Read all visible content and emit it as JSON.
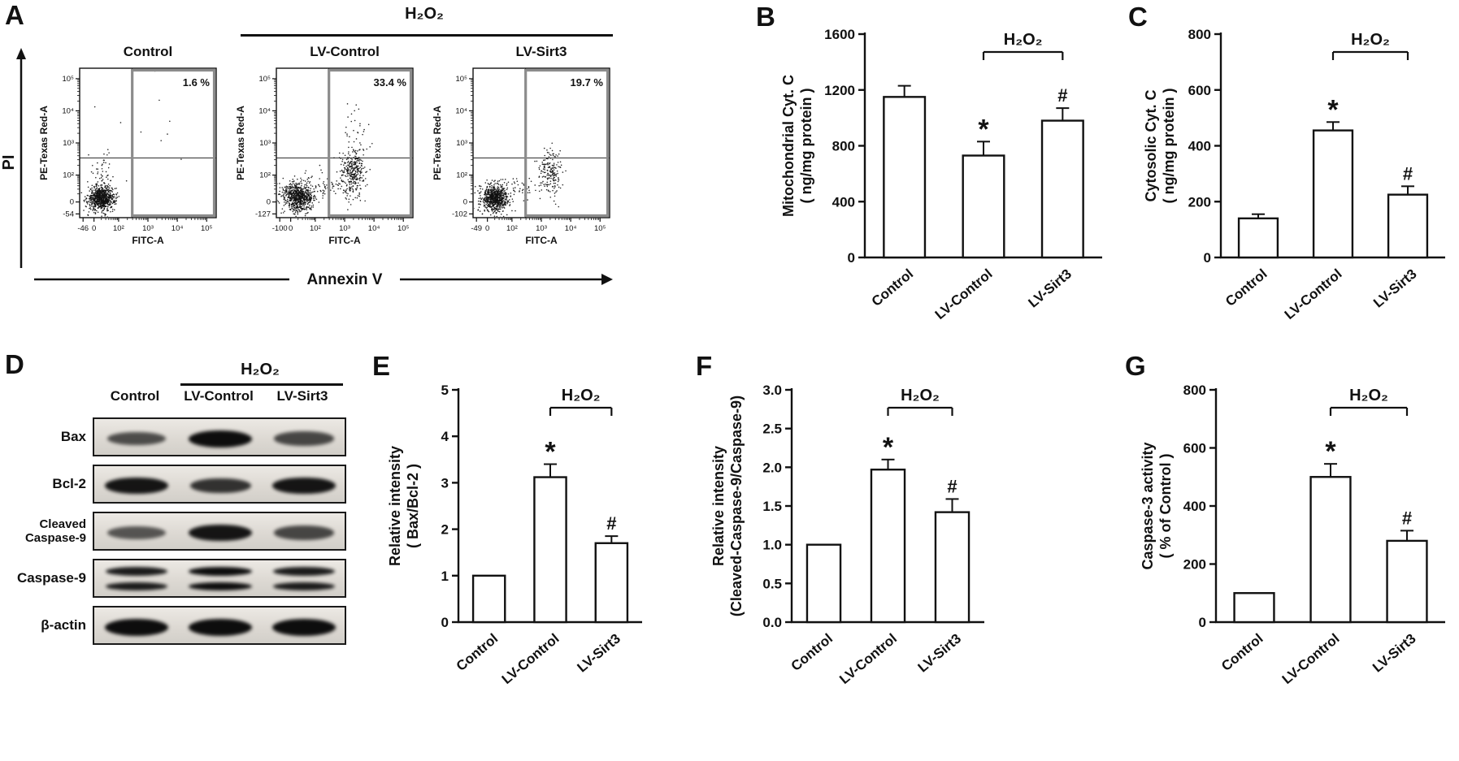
{
  "figure": {
    "colors": {
      "ink": "#111111",
      "gate_gray": "#8c8c8c"
    }
  },
  "chart_data": [
    {
      "panel_label": "A",
      "type": "scatter",
      "subtype": "flow-cytometry-dot-plot",
      "group_label": "H₂O₂",
      "outer_y_label": "PI",
      "outer_x_label": "Annexin V",
      "x_axis": "FITC-A",
      "y_axis": "PE-Texas Red-A",
      "plots": [
        {
          "title": "Control",
          "gate_percent": 1.6,
          "gate_percent_label": "1.6 %",
          "x_ticks": [
            "-46",
            "0",
            "10²",
            "10³",
            "10⁴",
            "10⁵"
          ],
          "y_ticks": [
            "-54",
            "0",
            "10²",
            "10³",
            "10⁴",
            "10⁵"
          ]
        },
        {
          "title": "LV-Control",
          "gate_percent": 33.4,
          "gate_percent_label": "33.4 %",
          "x_ticks": [
            "-100",
            "0",
            "10²",
            "10³",
            "10⁴",
            "10⁵"
          ],
          "y_ticks": [
            "-127",
            "0",
            "10²",
            "10³",
            "10⁴",
            "10⁵"
          ]
        },
        {
          "title": "LV-Sirt3",
          "gate_percent": 19.7,
          "gate_percent_label": "19.7 %",
          "x_ticks": [
            "-49",
            "0",
            "10²",
            "10³",
            "10⁴",
            "10⁵"
          ],
          "y_ticks": [
            "-102",
            "0",
            "10²",
            "10³",
            "10⁴",
            "10⁵"
          ]
        }
      ]
    },
    {
      "panel_label": "B",
      "type": "bar",
      "categories": [
        "Control",
        "LV-Control",
        "LV-Sirt3"
      ],
      "values": [
        1150,
        730,
        980
      ],
      "errors": [
        80,
        100,
        90
      ],
      "sig": [
        "",
        "*",
        "#"
      ],
      "bracket": {
        "label": "H₂O₂",
        "from": 1,
        "to": 2
      },
      "ylabel_lines": [
        "Mitochondrial Cyt. C",
        "( ng/mg protein )"
      ],
      "ylim": [
        0,
        1600
      ],
      "yticks": [
        "0",
        "400",
        "800",
        "1200",
        "1600"
      ]
    },
    {
      "panel_label": "C",
      "type": "bar",
      "categories": [
        "Control",
        "LV-Control",
        "LV-Sirt3"
      ],
      "values": [
        140,
        455,
        225
      ],
      "errors": [
        15,
        30,
        30
      ],
      "sig": [
        "",
        "*",
        "#"
      ],
      "bracket": {
        "label": "H₂O₂",
        "from": 1,
        "to": 2
      },
      "ylabel_lines": [
        "Cytosolic Cyt. C",
        "( ng/mg protein )"
      ],
      "ylim": [
        0,
        800
      ],
      "yticks": [
        "0",
        "200",
        "400",
        "600",
        "800"
      ]
    },
    {
      "panel_label": "E",
      "type": "bar",
      "categories": [
        "Control",
        "LV-Control",
        "LV-Sirt3"
      ],
      "values": [
        1.0,
        3.12,
        1.7
      ],
      "errors": [
        0,
        0.28,
        0.15
      ],
      "sig": [
        "",
        "*",
        "#"
      ],
      "bracket": {
        "label": "H₂O₂",
        "from": 1,
        "to": 2
      },
      "ylabel_lines": [
        "Relative intensity",
        "( Bax/Bcl-2 )"
      ],
      "ylim": [
        0,
        5
      ],
      "yticks": [
        "0",
        "1",
        "2",
        "3",
        "4",
        "5"
      ]
    },
    {
      "panel_label": "F",
      "type": "bar",
      "categories": [
        "Control",
        "LV-Control",
        "LV-Sirt3"
      ],
      "values": [
        1.0,
        1.97,
        1.42
      ],
      "errors": [
        0,
        0.13,
        0.17
      ],
      "sig": [
        "",
        "*",
        "#"
      ],
      "bracket": {
        "label": "H₂O₂",
        "from": 1,
        "to": 2
      },
      "ylabel_lines": [
        "Relative intensity",
        "(Cleaved-Caspase-9/Caspase-9)"
      ],
      "ylim": [
        0,
        3
      ],
      "yticks": [
        "0.0",
        "0.5",
        "1.0",
        "1.5",
        "2.0",
        "2.5",
        "3.0"
      ]
    },
    {
      "panel_label": "G",
      "type": "bar",
      "categories": [
        "Control",
        "LV-Control",
        "LV-Sirt3"
      ],
      "values": [
        100,
        500,
        280
      ],
      "errors": [
        0,
        45,
        35
      ],
      "sig": [
        "",
        "*",
        "#"
      ],
      "bracket": {
        "label": "H₂O₂",
        "from": 1,
        "to": 2
      },
      "ylabel_lines": [
        "Caspase-3 activity",
        "( % of Control )"
      ],
      "ylim": [
        0,
        800
      ],
      "yticks": [
        "0",
        "200",
        "400",
        "600",
        "800"
      ]
    }
  ],
  "panelD": {
    "label": "D",
    "h2o2_label": "H₂O₂",
    "columns": [
      "Control",
      "LV-Control",
      "LV-Sirt3"
    ],
    "rows": [
      {
        "name": [
          "Bax"
        ],
        "lanes": [
          0.55,
          1.0,
          0.6
        ],
        "double": false
      },
      {
        "name": [
          "Bcl-2"
        ],
        "lanes": [
          0.95,
          0.75,
          0.95
        ],
        "double": false
      },
      {
        "name": [
          "Cleaved",
          "Caspase-9"
        ],
        "lanes": [
          0.5,
          0.95,
          0.6
        ],
        "double": false
      },
      {
        "name": [
          "Caspase-9"
        ],
        "lanes": [
          0.9,
          1.0,
          0.9
        ],
        "double": true
      },
      {
        "name": [
          "β-actin"
        ],
        "lanes": [
          1.0,
          1.0,
          1.0
        ],
        "double": false
      }
    ]
  }
}
